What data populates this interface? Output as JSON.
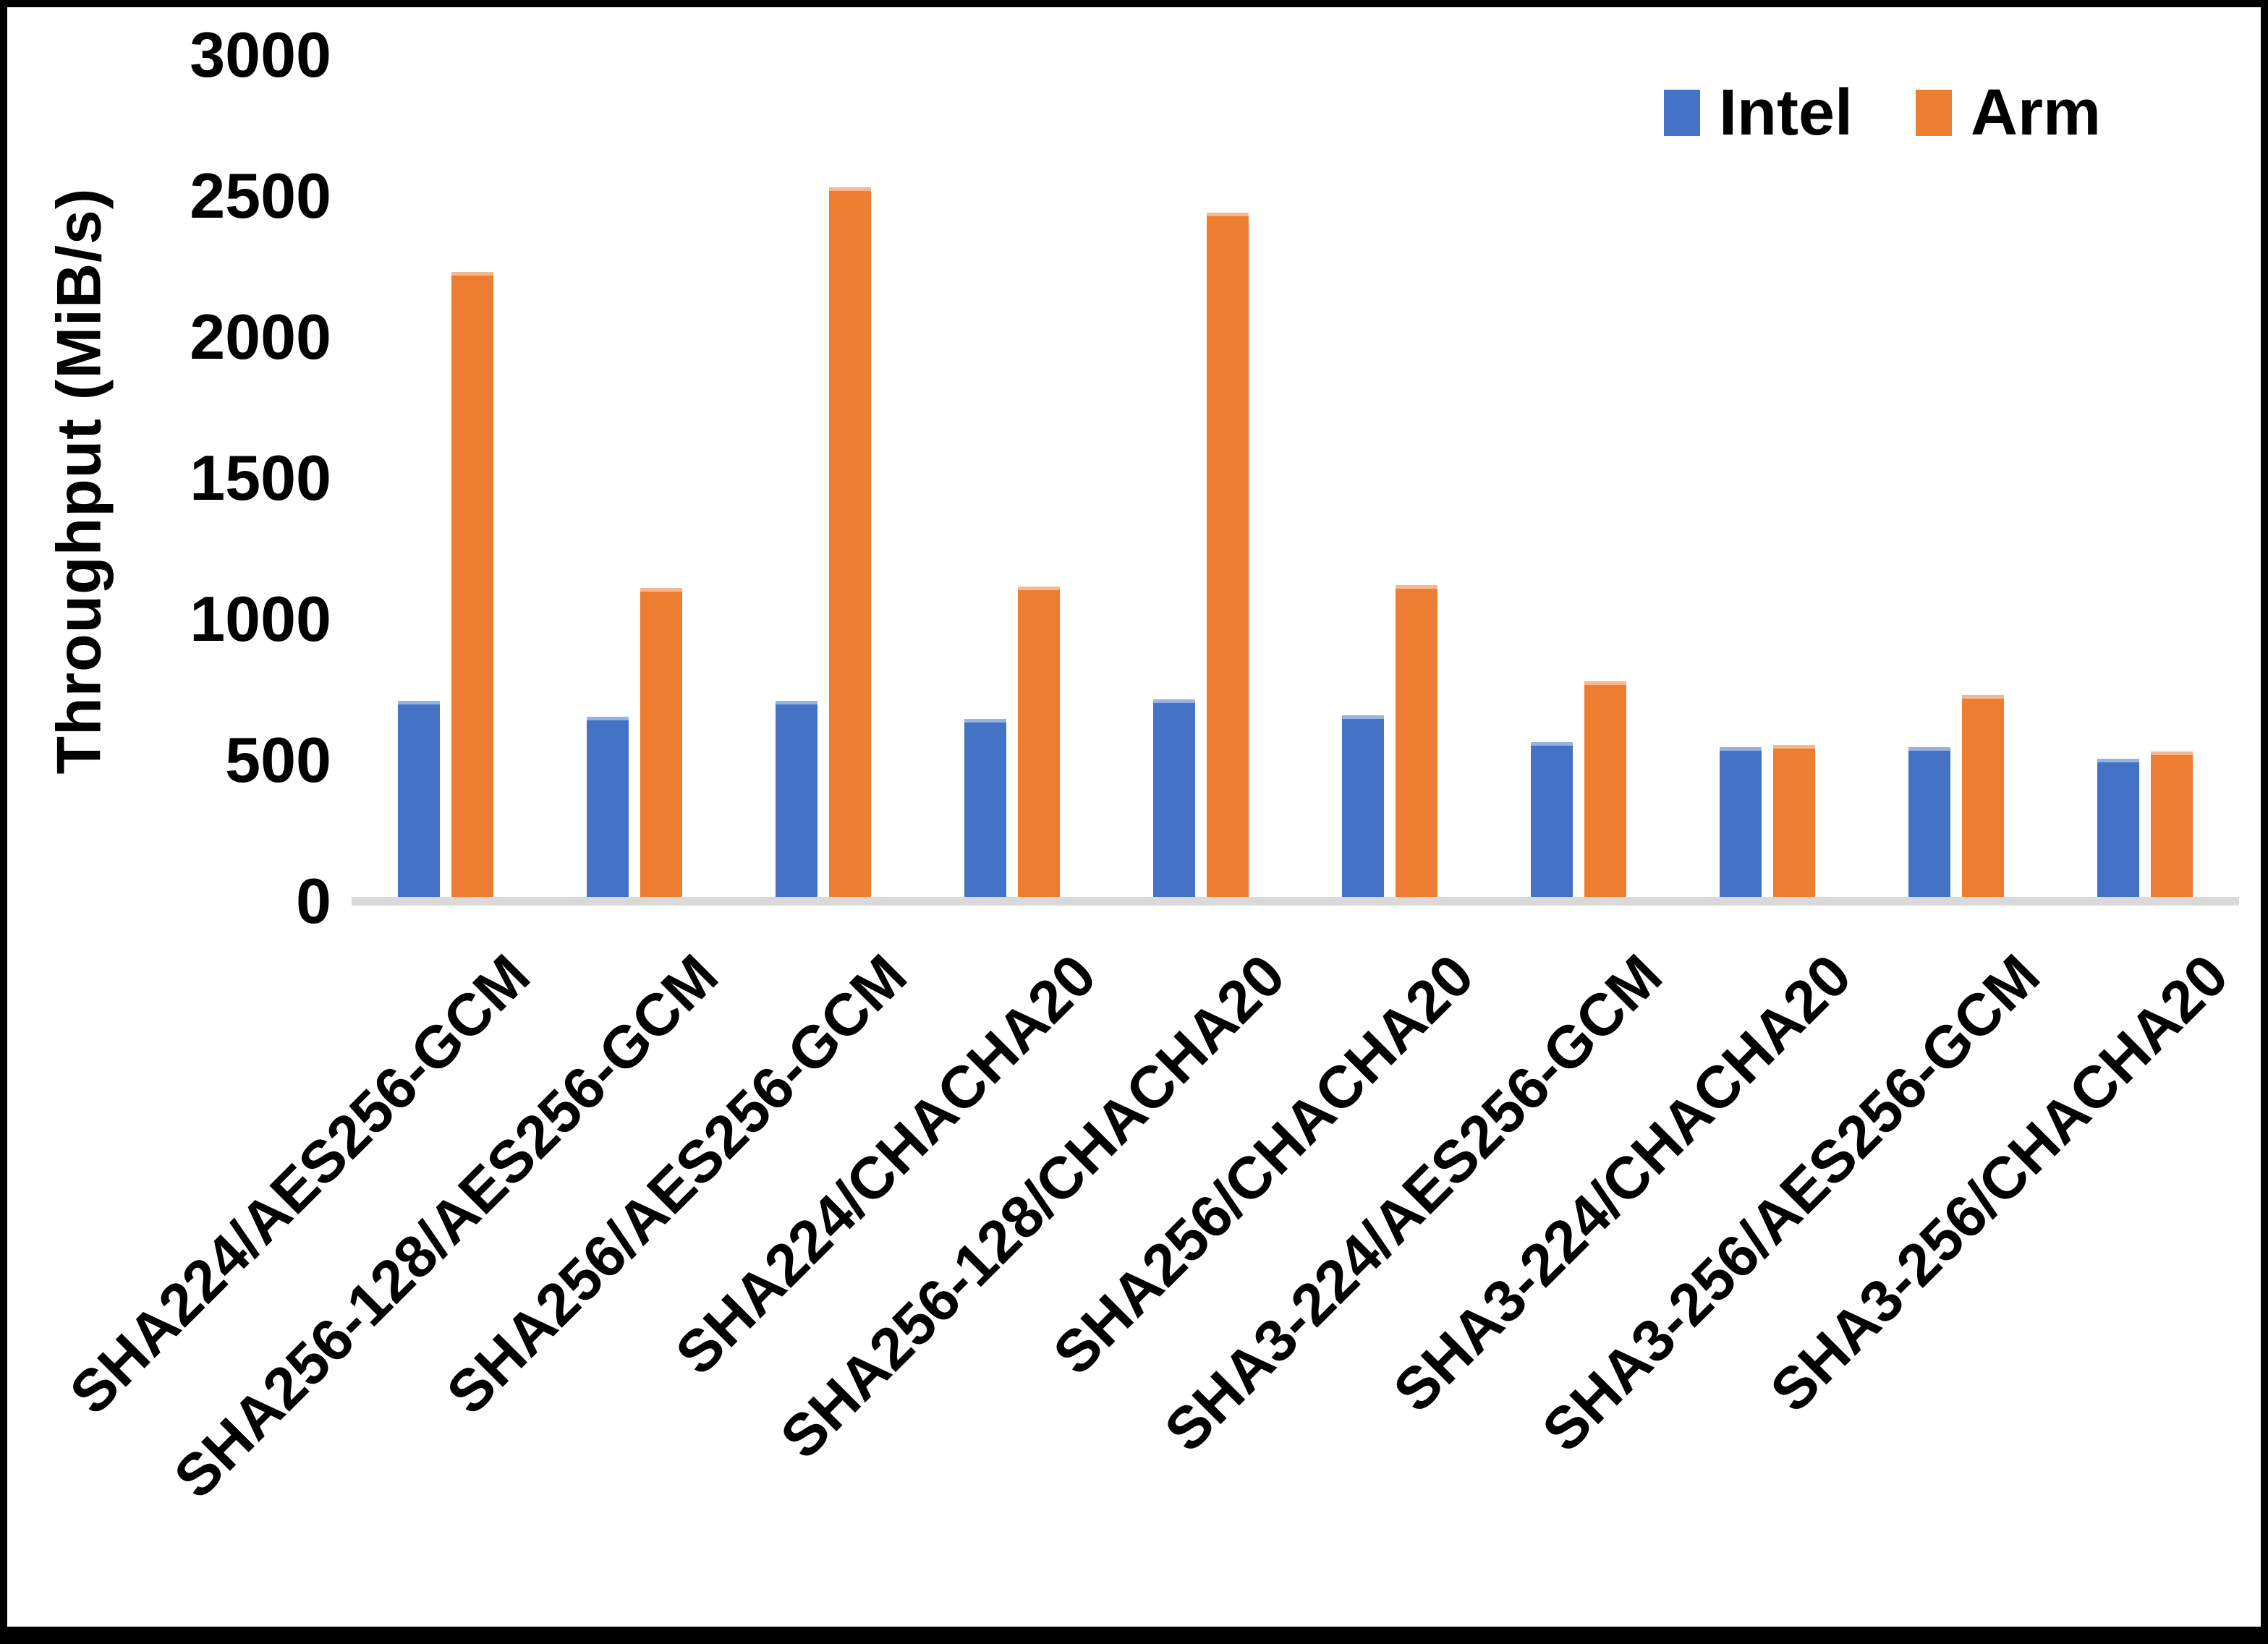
{
  "chart_data": {
    "type": "bar",
    "title": "",
    "ylabel": "Throughput (MiB/s)",
    "ylim": [
      0,
      3000
    ],
    "yticks": [
      0,
      500,
      1000,
      1500,
      2000,
      2500,
      3000
    ],
    "grid": false,
    "legend_position": "top-right",
    "categories": [
      "SHA224/AES256-GCM",
      "SHA256-128/AES256-GCM",
      "SHA256/AES256-GCM",
      "SHA224/CHACHA20",
      "SHA256-128/CHACHA20",
      "SHA256/CHACHA20",
      "SHA3-224/AES256-GCM",
      "SHA3-224/CHACHA20",
      "SHA3-256/AES256-GCM",
      "SHA3-256/CHACHA20"
    ],
    "series": [
      {
        "name": "Intel",
        "color": "#4472C4",
        "values": [
          710,
          655,
          710,
          645,
          715,
          660,
          565,
          545,
          545,
          505
        ]
      },
      {
        "name": "Arm",
        "color": "#ED7D31",
        "values": [
          2230,
          1110,
          2530,
          1115,
          2440,
          1120,
          780,
          555,
          730,
          530
        ]
      }
    ]
  },
  "colors": {
    "axis_line": "#d9d9d9",
    "text": "#000000",
    "background": "#ffffff"
  }
}
